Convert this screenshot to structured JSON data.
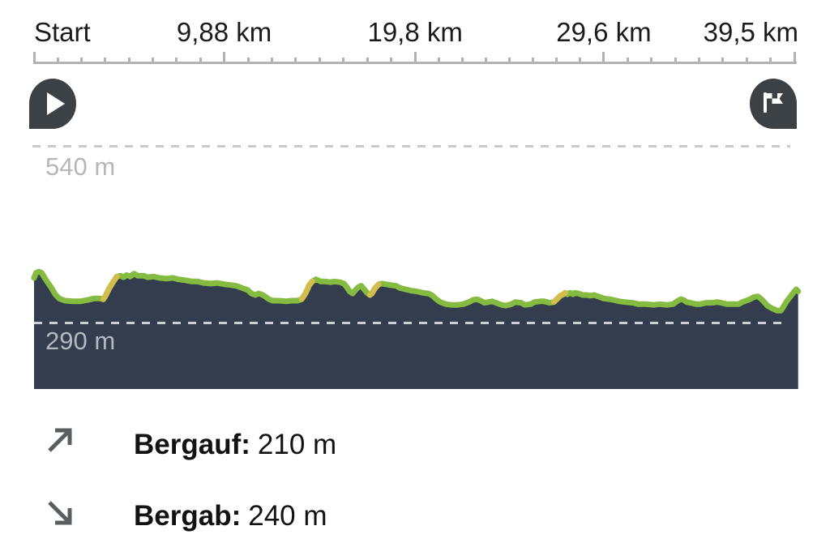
{
  "axis": {
    "tick_labels": [
      "Start",
      "9,88 km",
      "19,8 km",
      "29,6 km",
      "39,5 km"
    ]
  },
  "gridlines": {
    "upper_label": "540 m",
    "lower_label": "290 m"
  },
  "markers": {
    "start": "start-pin-play",
    "finish": "finish-pin-flag"
  },
  "stats": [
    {
      "icon": "arrow-up-right",
      "label": "Bergauf:",
      "value": "210 m"
    },
    {
      "icon": "arrow-down-right",
      "label": "Bergab:",
      "value": "240 m"
    }
  ],
  "colors": {
    "profile_fill": "#333d4e",
    "profile_line": "#84bb40",
    "steep_line": "#d2bd4d",
    "marker": "#3c4145",
    "ruler": "#b2b2b2",
    "grid_upper": "#c9c9c9",
    "grid_lower": "#ccd0d4",
    "muted_text": "#b4b9c0",
    "stat_icon": "#5b5e61",
    "axis_text": "#1b1b1b"
  },
  "chart_data": {
    "type": "area",
    "x_unit": "km",
    "y_unit": "m",
    "x_ticks_km": [
      0,
      9.88,
      19.8,
      29.6,
      39.5
    ],
    "x_range_km": [
      0,
      39.7
    ],
    "y_gridlines_m": [
      540,
      290
    ],
    "ascent_m": 210,
    "descent_m": 240,
    "legend": "dark area = terrain, green = route grade, yellow = steep grade",
    "steep_segments_km": [
      [
        3.55,
        4.35
      ],
      [
        13.85,
        14.45
      ],
      [
        17.4,
        17.95
      ],
      [
        27.0,
        27.65
      ]
    ],
    "profile": [
      [
        0,
        354
      ],
      [
        0.1,
        361
      ],
      [
        0.25,
        363
      ],
      [
        0.4,
        361
      ],
      [
        0.6,
        352
      ],
      [
        0.9,
        340
      ],
      [
        1.1,
        331
      ],
      [
        1.3,
        325
      ],
      [
        1.6,
        322
      ],
      [
        2.0,
        321
      ],
      [
        2.4,
        321
      ],
      [
        2.8,
        323
      ],
      [
        3.1,
        325
      ],
      [
        3.4,
        325
      ],
      [
        3.6,
        324
      ],
      [
        3.7,
        328
      ],
      [
        3.9,
        339
      ],
      [
        4.1,
        348
      ],
      [
        4.3,
        356
      ],
      [
        4.5,
        357
      ],
      [
        4.65,
        355
      ],
      [
        4.8,
        358
      ],
      [
        5.0,
        356
      ],
      [
        5.2,
        360
      ],
      [
        5.4,
        357
      ],
      [
        5.7,
        357
      ],
      [
        5.9,
        355
      ],
      [
        6.2,
        356
      ],
      [
        6.5,
        354
      ],
      [
        6.9,
        353
      ],
      [
        7.2,
        354
      ],
      [
        7.5,
        352
      ],
      [
        7.8,
        351
      ],
      [
        8.2,
        349
      ],
      [
        8.5,
        349
      ],
      [
        8.8,
        347
      ],
      [
        9.2,
        346
      ],
      [
        9.5,
        347
      ],
      [
        9.9,
        345
      ],
      [
        10.2,
        344
      ],
      [
        10.5,
        343
      ],
      [
        10.9,
        339
      ],
      [
        11.1,
        337
      ],
      [
        11.3,
        332
      ],
      [
        11.5,
        330
      ],
      [
        11.65,
        332
      ],
      [
        11.8,
        331
      ],
      [
        12.0,
        328
      ],
      [
        12.2,
        324
      ],
      [
        12.4,
        322
      ],
      [
        12.7,
        322
      ],
      [
        13.1,
        321
      ],
      [
        13.4,
        322
      ],
      [
        13.7,
        322
      ],
      [
        13.9,
        324
      ],
      [
        14.1,
        332
      ],
      [
        14.3,
        344
      ],
      [
        14.45,
        349
      ],
      [
        14.65,
        352
      ],
      [
        14.9,
        349
      ],
      [
        15.1,
        349
      ],
      [
        15.4,
        348
      ],
      [
        15.6,
        349
      ],
      [
        15.9,
        348
      ],
      [
        16.1,
        346
      ],
      [
        16.25,
        341
      ],
      [
        16.4,
        335
      ],
      [
        16.55,
        332
      ],
      [
        16.7,
        337
      ],
      [
        16.85,
        341
      ],
      [
        17.0,
        343
      ],
      [
        17.15,
        338
      ],
      [
        17.3,
        333
      ],
      [
        17.45,
        330
      ],
      [
        17.55,
        332
      ],
      [
        17.7,
        339
      ],
      [
        17.9,
        345
      ],
      [
        18.1,
        346
      ],
      [
        18.3,
        345
      ],
      [
        18.5,
        344
      ],
      [
        18.8,
        343
      ],
      [
        19.0,
        340
      ],
      [
        19.3,
        338
      ],
      [
        19.6,
        336
      ],
      [
        19.9,
        335
      ],
      [
        20.2,
        333
      ],
      [
        20.5,
        332
      ],
      [
        20.7,
        329
      ],
      [
        20.9,
        324
      ],
      [
        21.1,
        320
      ],
      [
        21.4,
        317
      ],
      [
        21.7,
        316
      ],
      [
        22.0,
        316
      ],
      [
        22.3,
        317
      ],
      [
        22.6,
        320
      ],
      [
        22.8,
        323
      ],
      [
        23.0,
        324
      ],
      [
        23.2,
        322
      ],
      [
        23.4,
        319
      ],
      [
        23.6,
        320
      ],
      [
        23.8,
        321
      ],
      [
        24.0,
        319
      ],
      [
        24.3,
        316
      ],
      [
        24.5,
        315
      ],
      [
        24.8,
        317
      ],
      [
        25.0,
        320
      ],
      [
        25.3,
        319
      ],
      [
        25.5,
        316
      ],
      [
        25.8,
        317
      ],
      [
        26.0,
        320
      ],
      [
        26.3,
        321
      ],
      [
        26.5,
        321
      ],
      [
        26.8,
        319
      ],
      [
        27.0,
        320
      ],
      [
        27.2,
        325
      ],
      [
        27.35,
        329
      ],
      [
        27.5,
        331
      ],
      [
        27.6,
        333
      ],
      [
        27.7,
        331
      ],
      [
        27.85,
        333
      ],
      [
        28.0,
        331
      ],
      [
        28.1,
        333
      ],
      [
        28.3,
        332
      ],
      [
        28.5,
        330
      ],
      [
        28.7,
        330
      ],
      [
        28.9,
        329
      ],
      [
        29.1,
        330
      ],
      [
        29.3,
        328
      ],
      [
        29.6,
        325
      ],
      [
        29.9,
        324
      ],
      [
        30.1,
        323
      ],
      [
        30.4,
        321
      ],
      [
        30.7,
        320
      ],
      [
        31.1,
        319
      ],
      [
        31.4,
        317
      ],
      [
        31.8,
        317
      ],
      [
        32.2,
        316
      ],
      [
        32.5,
        317
      ],
      [
        32.9,
        316
      ],
      [
        33.2,
        317
      ],
      [
        33.4,
        321
      ],
      [
        33.6,
        324
      ],
      [
        33.75,
        323
      ],
      [
        33.9,
        320
      ],
      [
        34.1,
        319
      ],
      [
        34.4,
        317
      ],
      [
        34.6,
        317
      ],
      [
        34.9,
        319
      ],
      [
        35.2,
        319
      ],
      [
        35.5,
        320
      ],
      [
        35.7,
        319
      ],
      [
        36.0,
        317
      ],
      [
        36.3,
        317
      ],
      [
        36.6,
        317
      ],
      [
        36.8,
        320
      ],
      [
        37.0,
        322
      ],
      [
        37.2,
        324
      ],
      [
        37.4,
        327
      ],
      [
        37.6,
        328
      ],
      [
        37.75,
        325
      ],
      [
        37.9,
        321
      ],
      [
        38.1,
        315
      ],
      [
        38.35,
        311
      ],
      [
        38.6,
        308
      ],
      [
        38.8,
        308
      ],
      [
        38.95,
        314
      ],
      [
        39.1,
        321
      ],
      [
        39.3,
        328
      ],
      [
        39.5,
        335
      ],
      [
        39.6,
        338
      ],
      [
        39.7,
        335
      ]
    ]
  }
}
